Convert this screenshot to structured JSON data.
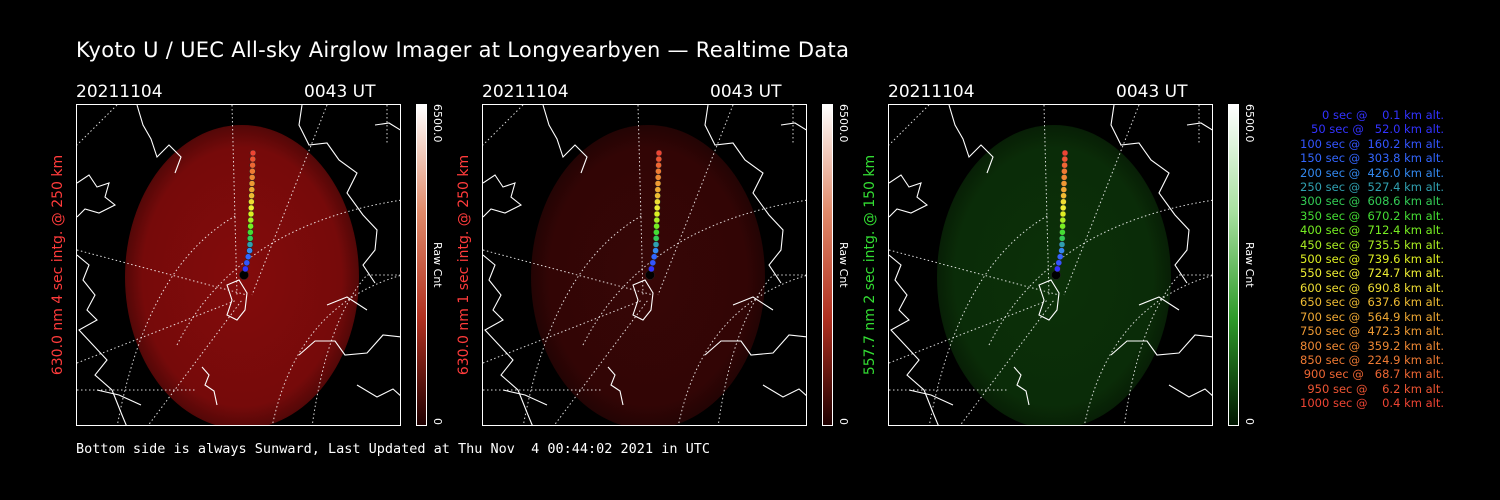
{
  "title": "Kyoto U / UEC All-sky Airglow Imager at Longyearbyen — Realtime Data",
  "panels": [
    {
      "date": "20211104",
      "time": "0043 UT",
      "ylabel": "630.0 nm 4 sec intg. @ 250 km",
      "label_color": "#ff3b3b",
      "glow_color": "#8a0c0c",
      "glow_opacity": 0.95,
      "cbar_max": "6500.0",
      "cbar_min": "0",
      "cbar_label": "Raw Cnt",
      "cbar_gradient": [
        "#ffffff",
        "#e08a6a",
        "#b03020",
        "#200000"
      ]
    },
    {
      "date": "20211104",
      "time": "0043 UT",
      "ylabel": "630.0 nm 1 sec intg. @ 250 km",
      "label_color": "#ff3b3b",
      "glow_color": "#3a0606",
      "glow_opacity": 0.95,
      "cbar_max": "6500.0",
      "cbar_min": "0",
      "cbar_label": "Raw Cnt",
      "cbar_gradient": [
        "#ffffff",
        "#e08a6a",
        "#b03020",
        "#200000"
      ]
    },
    {
      "date": "20211104",
      "time": "0043 UT",
      "ylabel": "557.7 nm 2 sec intg. @ 150 km",
      "label_color": "#33dd33",
      "glow_color": "#0c3309",
      "glow_opacity": 0.95,
      "cbar_max": "6500.0",
      "cbar_min": "0",
      "cbar_label": "Raw Cnt",
      "cbar_gradient": [
        "#ffffff",
        "#a8e0a0",
        "#2e9a2a",
        "#001500"
      ]
    }
  ],
  "legend": [
    {
      "text": "0 sec @    0.1 km alt.",
      "color": "#3333ff"
    },
    {
      "text": "50 sec @   52.0 km alt.",
      "color": "#3333ff"
    },
    {
      "text": "100 sec @  160.2 km alt.",
      "color": "#3355ff"
    },
    {
      "text": "150 sec @  303.8 km alt.",
      "color": "#3366ff"
    },
    {
      "text": "200 sec @  426.0 km alt.",
      "color": "#3388ee"
    },
    {
      "text": "250 sec @  527.4 km alt.",
      "color": "#30a0b0"
    },
    {
      "text": "300 sec @  608.6 km alt.",
      "color": "#33cc55"
    },
    {
      "text": "350 sec @  670.2 km alt.",
      "color": "#44dd33"
    },
    {
      "text": "400 sec @  712.4 km alt.",
      "color": "#77ee22"
    },
    {
      "text": "450 sec @  735.5 km alt.",
      "color": "#aaee22"
    },
    {
      "text": "500 sec @  739.6 km alt.",
      "color": "#ddee22"
    },
    {
      "text": "550 sec @  724.7 km alt.",
      "color": "#eeee33"
    },
    {
      "text": "600 sec @  690.8 km alt.",
      "color": "#eedd33"
    },
    {
      "text": "650 sec @  637.6 km alt.",
      "color": "#eebb33"
    },
    {
      "text": "700 sec @  564.9 km alt.",
      "color": "#eea833"
    },
    {
      "text": "750 sec @  472.3 km alt.",
      "color": "#ee9933"
    },
    {
      "text": "800 sec @  359.2 km alt.",
      "color": "#ee8833"
    },
    {
      "text": "850 sec @  224.9 km alt.",
      "color": "#ee7a33"
    },
    {
      "text": "900 sec @   68.7 km alt.",
      "color": "#ee6633"
    },
    {
      "text": "950 sec @    6.2 km alt.",
      "color": "#ee5533"
    },
    {
      "text": "1000 sec @    0.4 km alt.",
      "color": "#ee4433"
    }
  ],
  "footer": "Bottom side is always Sunward, Last Updated at Thu Nov  4 00:44:02 2021 in UTC"
}
